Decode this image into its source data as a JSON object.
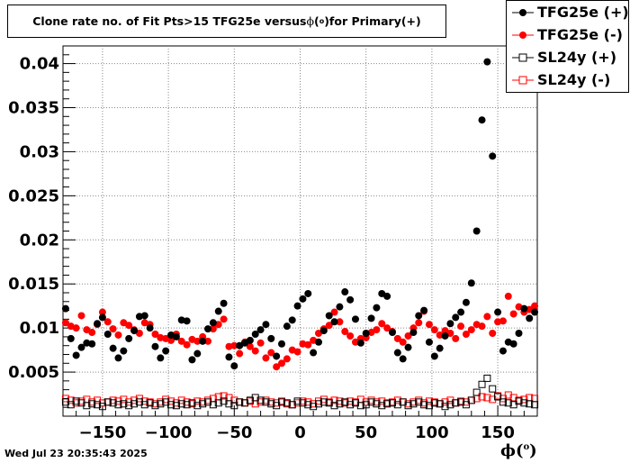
{
  "title": {
    "prefix": "Clone rate no. of Fit Pts>15 TFG25e versus ",
    "phi": "ϕ",
    "open": "(",
    "deg": "o",
    "close": ")",
    "suffix": " for Primary(+)"
  },
  "xlabel": {
    "phi": "ϕ",
    "open": "(",
    "deg": "o",
    "close": ")"
  },
  "timestamp": "Wed Jul 23 20:35:43 2025",
  "colors": {
    "black": "#000000",
    "red": "#ff0000",
    "grid": "#888888"
  },
  "chart_data": {
    "type": "scatter",
    "xlim": [
      -180,
      180
    ],
    "ylim": [
      0,
      0.042
    ],
    "x_ticks": [
      {
        "value": -150,
        "label": "−150"
      },
      {
        "value": -100,
        "label": "−100"
      },
      {
        "value": -50,
        "label": "−50"
      },
      {
        "value": 0,
        "label": "0"
      },
      {
        "value": 50,
        "label": "50"
      },
      {
        "value": 100,
        "label": "100"
      },
      {
        "value": 150,
        "label": "150"
      }
    ],
    "y_ticks": [
      {
        "value": 0.005,
        "label": "0.005"
      },
      {
        "value": 0.01,
        "label": "0.01"
      },
      {
        "value": 0.015,
        "label": "0.015"
      },
      {
        "value": 0.02,
        "label": "0.02"
      },
      {
        "value": 0.025,
        "label": "0.025"
      },
      {
        "value": 0.03,
        "label": "0.03"
      },
      {
        "value": 0.035,
        "label": "0.035"
      },
      {
        "value": 0.04,
        "label": "0.04"
      }
    ],
    "grid": true,
    "legend_position": "top-right",
    "x": [
      -178,
      -174,
      -170,
      -166,
      -162,
      -158,
      -154,
      -150,
      -146,
      -142,
      -138,
      -134,
      -130,
      -126,
      -122,
      -118,
      -114,
      -110,
      -106,
      -102,
      -98,
      -94,
      -90,
      -86,
      -82,
      -78,
      -74,
      -70,
      -66,
      -62,
      -58,
      -54,
      -50,
      -46,
      -42,
      -38,
      -34,
      -30,
      -26,
      -22,
      -18,
      -14,
      -10,
      -6,
      -2,
      2,
      6,
      10,
      14,
      18,
      22,
      26,
      30,
      34,
      38,
      42,
      46,
      50,
      54,
      58,
      62,
      66,
      70,
      74,
      78,
      82,
      86,
      90,
      94,
      98,
      102,
      106,
      110,
      114,
      118,
      122,
      126,
      130,
      134,
      138,
      142,
      146,
      150,
      154,
      158,
      162,
      166,
      170,
      174,
      178
    ],
    "series": [
      {
        "name": "TFG25e (+)",
        "marker": "filled-circle",
        "color": "#000000",
        "values": [
          0.0122,
          0.0088,
          0.0069,
          0.0078,
          0.0083,
          0.0082,
          0.0105,
          0.0112,
          0.0093,
          0.0077,
          0.0066,
          0.0074,
          0.0088,
          0.0097,
          0.0113,
          0.0114,
          0.01,
          0.0079,
          0.0066,
          0.0074,
          0.0092,
          0.009,
          0.0109,
          0.0108,
          0.0064,
          0.0071,
          0.0085,
          0.0099,
          0.0106,
          0.0119,
          0.0128,
          0.0067,
          0.0057,
          0.008,
          0.0083,
          0.0086,
          0.0093,
          0.0098,
          0.0104,
          0.0088,
          0.0068,
          0.0082,
          0.0102,
          0.0109,
          0.0125,
          0.0133,
          0.0139,
          0.0072,
          0.0084,
          0.0097,
          0.0114,
          0.0107,
          0.0124,
          0.0141,
          0.0132,
          0.011,
          0.0083,
          0.0094,
          0.0111,
          0.0123,
          0.0139,
          0.0136,
          0.0095,
          0.0072,
          0.0065,
          0.0078,
          0.0095,
          0.0114,
          0.012,
          0.0084,
          0.0068,
          0.0077,
          0.0091,
          0.0105,
          0.0112,
          0.0118,
          0.0129,
          0.0151,
          0.021,
          0.0336,
          0.0402,
          0.0295,
          0.0118,
          0.0074,
          0.0084,
          0.0082,
          0.0094,
          0.0122,
          0.0111,
          0.0118
        ]
      },
      {
        "name": "TFG25e (-)",
        "marker": "filled-circle",
        "color": "#ff0000",
        "values": [
          0.0106,
          0.0102,
          0.01,
          0.0114,
          0.0098,
          0.0095,
          0.0104,
          0.0118,
          0.0107,
          0.0099,
          0.0092,
          0.0106,
          0.0103,
          0.0098,
          0.0094,
          0.0106,
          0.0104,
          0.0093,
          0.0089,
          0.0088,
          0.0086,
          0.0093,
          0.0085,
          0.0081,
          0.0087,
          0.0085,
          0.009,
          0.0085,
          0.0099,
          0.0104,
          0.011,
          0.0079,
          0.008,
          0.0071,
          0.0084,
          0.0079,
          0.0074,
          0.0083,
          0.0066,
          0.0072,
          0.0056,
          0.006,
          0.0065,
          0.0075,
          0.0073,
          0.0082,
          0.0081,
          0.0086,
          0.0094,
          0.0099,
          0.0103,
          0.0118,
          0.0107,
          0.0096,
          0.0091,
          0.0084,
          0.0088,
          0.0089,
          0.0095,
          0.0098,
          0.0105,
          0.01,
          0.0096,
          0.0088,
          0.0084,
          0.0091,
          0.01,
          0.0106,
          0.0119,
          0.0104,
          0.0098,
          0.0092,
          0.0097,
          0.0094,
          0.0088,
          0.0102,
          0.0093,
          0.0098,
          0.0104,
          0.0102,
          0.0113,
          0.0094,
          0.0107,
          0.0108,
          0.0136,
          0.0116,
          0.0124,
          0.0118,
          0.0121,
          0.0125
        ]
      },
      {
        "name": "SL24y (+)",
        "marker": "open-square",
        "color": "#000000",
        "values": [
          0.0016,
          0.0013,
          0.0017,
          0.0015,
          0.0012,
          0.0014,
          0.0013,
          0.0011,
          0.0016,
          0.0015,
          0.0013,
          0.0014,
          0.0012,
          0.0014,
          0.0016,
          0.0013,
          0.0015,
          0.0012,
          0.0014,
          0.0016,
          0.0013,
          0.0012,
          0.0014,
          0.0013,
          0.0015,
          0.0012,
          0.0014,
          0.0016,
          0.0013,
          0.0015,
          0.0017,
          0.0014,
          0.0012,
          0.0016,
          0.0015,
          0.0018,
          0.0021,
          0.0018,
          0.0016,
          0.0014,
          0.0012,
          0.0016,
          0.0015,
          0.0013,
          0.0017,
          0.0015,
          0.0013,
          0.0011,
          0.0014,
          0.0016,
          0.0015,
          0.0012,
          0.0014,
          0.0016,
          0.0013,
          0.0015,
          0.0012,
          0.0013,
          0.0016,
          0.0014,
          0.0012,
          0.0014,
          0.0015,
          0.0013,
          0.0016,
          0.0012,
          0.0014,
          0.0016,
          0.0013,
          0.0012,
          0.0015,
          0.0014,
          0.0011,
          0.0013,
          0.0015,
          0.0016,
          0.0013,
          0.0018,
          0.0027,
          0.0036,
          0.0043,
          0.0031,
          0.0022,
          0.0016,
          0.0015,
          0.0013,
          0.0017,
          0.0015,
          0.0014,
          0.0013
        ]
      },
      {
        "name": "SL24y (-)",
        "marker": "open-square",
        "color": "#ff0000",
        "values": [
          0.002,
          0.0018,
          0.0015,
          0.0017,
          0.0019,
          0.0016,
          0.0018,
          0.0015,
          0.0016,
          0.0018,
          0.0017,
          0.0019,
          0.0016,
          0.0018,
          0.002,
          0.0017,
          0.0016,
          0.0014,
          0.0016,
          0.0019,
          0.0017,
          0.0015,
          0.0018,
          0.0016,
          0.0014,
          0.0017,
          0.0016,
          0.0018,
          0.002,
          0.0022,
          0.0023,
          0.0021,
          0.0018,
          0.0016,
          0.0015,
          0.0017,
          0.0014,
          0.0016,
          0.0018,
          0.0016,
          0.0015,
          0.0017,
          0.0014,
          0.0013,
          0.0015,
          0.0017,
          0.0016,
          0.0014,
          0.0017,
          0.0019,
          0.0016,
          0.0018,
          0.0017,
          0.0015,
          0.0017,
          0.0016,
          0.0019,
          0.0016,
          0.0018,
          0.0016,
          0.0017,
          0.0015,
          0.0016,
          0.0018,
          0.0016,
          0.0014,
          0.0016,
          0.0018,
          0.0015,
          0.0017,
          0.0016,
          0.0014,
          0.0016,
          0.0018,
          0.0015,
          0.0017,
          0.0016,
          0.0018,
          0.002,
          0.0022,
          0.0021,
          0.0019,
          0.0023,
          0.002,
          0.0024,
          0.0021,
          0.0018,
          0.0019,
          0.0021,
          0.002
        ]
      }
    ]
  }
}
